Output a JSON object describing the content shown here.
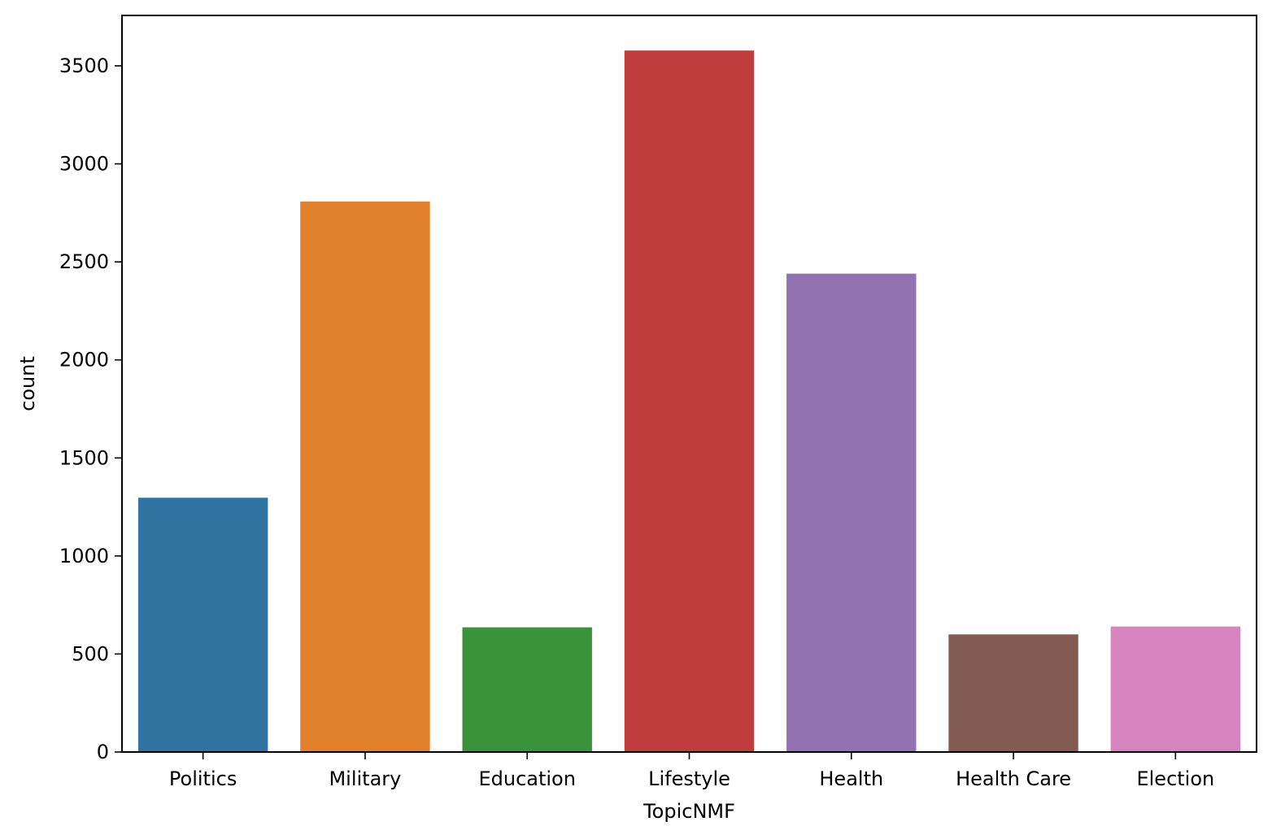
{
  "chart_data": {
    "type": "bar",
    "title": "",
    "xlabel": "TopicNMF",
    "ylabel": "count",
    "categories": [
      "Politics",
      "Military",
      "Education",
      "Lifestyle",
      "Health",
      "Health Care",
      "Election"
    ],
    "values": [
      1297,
      2808,
      636,
      3578,
      2440,
      600,
      640
    ],
    "colors": [
      "#3274a1",
      "#e1812c",
      "#3a923a",
      "#c03d3e",
      "#9372b2",
      "#845b53",
      "#d684bd"
    ],
    "ylim": [
      0,
      3757
    ],
    "yticks": [
      0,
      500,
      1000,
      1500,
      2000,
      2500,
      3000,
      3500
    ],
    "grid": false,
    "legend": "none"
  }
}
